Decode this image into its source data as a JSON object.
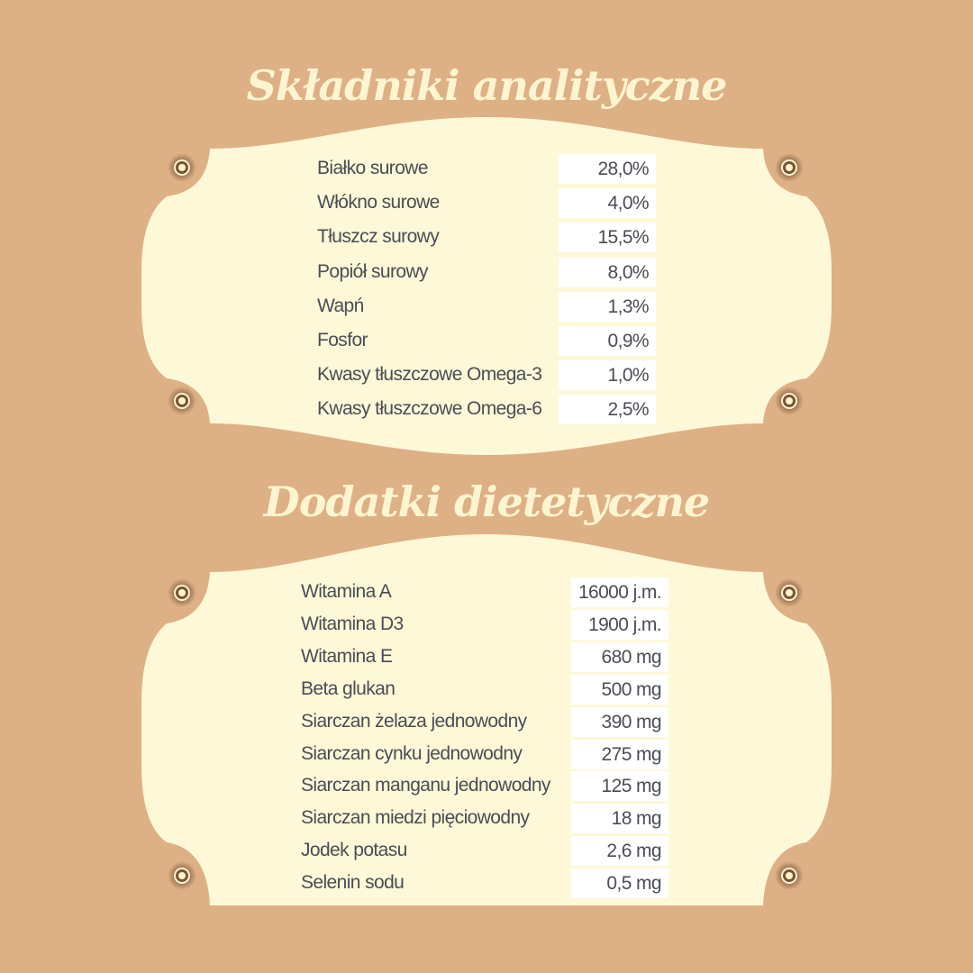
{
  "colors": {
    "background": "#deb085",
    "plaque": "#fdf8d8",
    "text": "#4a4d55",
    "title": "#fdf5d0"
  },
  "section1": {
    "title": "Składniki analityczne",
    "rows": [
      {
        "label": "Białko surowe",
        "value": "28,0%"
      },
      {
        "label": "Włókno surowe",
        "value": "4,0%"
      },
      {
        "label": "Tłuszcz surowy",
        "value": "15,5%"
      },
      {
        "label": "Popiół surowy",
        "value": "8,0%"
      },
      {
        "label": "Wapń",
        "value": "1,3%"
      },
      {
        "label": "Fosfor",
        "value": "0,9%"
      },
      {
        "label": "Kwasy tłuszczowe Omega-3",
        "value": "1,0%"
      },
      {
        "label": "Kwasy tłuszczowe Omega-6",
        "value": "2,5%"
      }
    ]
  },
  "section2": {
    "title": "Dodatki dietetyczne",
    "rows": [
      {
        "label": "Witamina A",
        "value": "16000 j.m."
      },
      {
        "label": "Witamina D3",
        "value": "1900 j.m."
      },
      {
        "label": "Witamina E",
        "value": "680 mg"
      },
      {
        "label": "Beta glukan",
        "value": "500 mg"
      },
      {
        "label": "Siarczan żelaza jednowodny",
        "value": "390 mg"
      },
      {
        "label": "Siarczan cynku jednowodny",
        "value": "275 mg"
      },
      {
        "label": "Siarczan manganu jednowodny",
        "value": "125 mg"
      },
      {
        "label": "Siarczan miedzi pięciowodny",
        "value": "18 mg"
      },
      {
        "label": "Jodek potasu",
        "value": "2,6 mg"
      },
      {
        "label": "Selenin sodu",
        "value": "0,5 mg"
      }
    ]
  }
}
